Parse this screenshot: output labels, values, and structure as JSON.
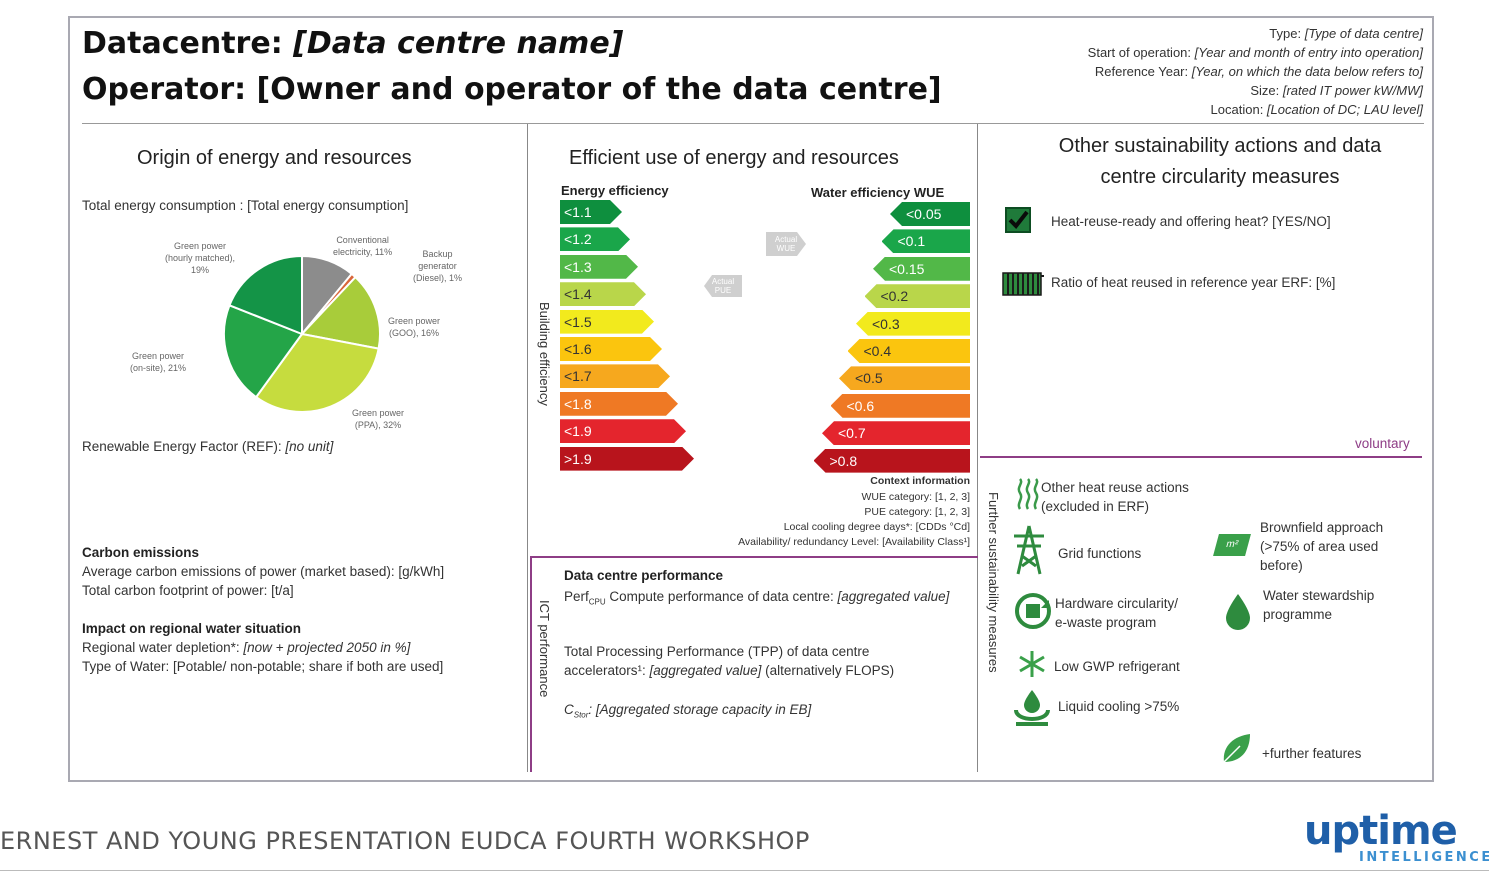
{
  "header": {
    "title_prefix": "Datacentre: ",
    "title_name": "[Data centre name]",
    "operator": "Operator: [Owner and operator of the data centre]",
    "meta": [
      {
        "label": "Type: ",
        "value": "[Type of data centre]"
      },
      {
        "label": "Start of operation: ",
        "value": "[Year and month of entry into operation]"
      },
      {
        "label": "Reference Year: ",
        "value": "[Year, on which the data below refers to]"
      },
      {
        "label": "Size: ",
        "value": "[rated IT power kW/MW]"
      },
      {
        "label": "Location: ",
        "value": "[Location of DC; LAU level]"
      }
    ]
  },
  "origin": {
    "heading": "Origin of energy and resources",
    "total": "Total energy consumption : [Total energy consumption]",
    "ref_label": "Renewable Energy Factor (REF): ",
    "ref_value": "[no unit]",
    "pie_labels": {
      "hourly": "Green power\n(hourly matched),\n19%",
      "conv": "Conventional\nelectricity, 11%",
      "backup": "Backup\ngenerator\n(Diesel), 1%",
      "goo": "Green power\n(GOO), 16%",
      "onsite": "Green power\n(on-site), 21%",
      "ppa": "Green power\n(PPA), 32%"
    },
    "carbon_heading": "Carbon emissions",
    "carbon_1": "Average carbon emissions of power (market based): [g/kWh]",
    "carbon_2": "Total carbon footprint of power: [t/a]",
    "water_heading": "Impact on regional water situation",
    "water_1a": "Regional water depletion*: ",
    "water_1b": "[now + projected 2050 in %]",
    "water_2": "Type of Water: [Potable/ non-potable; share if both are used]"
  },
  "chart_data": {
    "type": "pie",
    "title": "",
    "slices": [
      {
        "label": "Conventional electricity",
        "value": 11,
        "color": "#8c8c8c"
      },
      {
        "label": "Backup generator (Diesel)",
        "value": 1,
        "color": "#d9663a"
      },
      {
        "label": "Green power (GOO)",
        "value": 16,
        "color": "#a8cc3a"
      },
      {
        "label": "Green power (PPA)",
        "value": 32,
        "color": "#c6dc3e"
      },
      {
        "label": "Green power (on-site)",
        "value": 21,
        "color": "#24a548"
      },
      {
        "label": "Green power (hourly matched)",
        "value": 19,
        "color": "#149447"
      }
    ]
  },
  "efficiency": {
    "heading": "Efficient use of energy and resources",
    "energy_label": "Energy efficiency",
    "water_label": "Water efficiency WUE",
    "building_label": "Building efficiency",
    "actual_pue": "Actual\nPUE",
    "actual_wue": "Actual\nWUE",
    "pue_classes": [
      {
        "label": "<1.1",
        "color": "#0e8f3e"
      },
      {
        "label": "<1.2",
        "color": "#1aa64a"
      },
      {
        "label": "<1.3",
        "color": "#52b848"
      },
      {
        "label": "<1.4",
        "color": "#b9d64a"
      },
      {
        "label": "<1.5",
        "color": "#f2ea1d"
      },
      {
        "label": "<1.6",
        "color": "#fbc50e"
      },
      {
        "label": "<1.7",
        "color": "#f6a81e"
      },
      {
        "label": "<1.8",
        "color": "#ef7924"
      },
      {
        "label": "<1.9",
        "color": "#e4252d"
      },
      {
        "label": ">1.9",
        "color": "#b8141c"
      }
    ],
    "wue_classes": [
      {
        "label": "<0.05",
        "color": "#0e8f3e"
      },
      {
        "label": "<0.1",
        "color": "#1aa64a"
      },
      {
        "label": "<0.15",
        "color": "#52b848"
      },
      {
        "label": "<0.2",
        "color": "#b9d64a"
      },
      {
        "label": "<0.3",
        "color": "#f2ea1d"
      },
      {
        "label": "<0.4",
        "color": "#fbc50e"
      },
      {
        "label": "<0.5",
        "color": "#f6a81e"
      },
      {
        "label": "<0.6",
        "color": "#ef7924"
      },
      {
        "label": "<0.7",
        "color": "#e4252d"
      },
      {
        "label": ">0.8",
        "color": "#b8141c"
      }
    ],
    "context_heading": "Context information",
    "context": [
      "WUE category: [1, 2, 3]",
      "PUE category: [1, 2, 3]",
      "Local cooling degree days*: [CDDs °Cd]",
      "Availability/ redundancy Level: [Availability Class¹]"
    ]
  },
  "performance": {
    "vertical_label": "ICT performance",
    "heading": "Data centre performance",
    "perf_prefix": "Perf",
    "perf_sub": "CPU",
    "perf_text": " Compute performance of data centre: ",
    "perf_value": "[aggregated value]",
    "tpp_1": "Total Processing Performance (TPP) of data centre",
    "tpp_2a": "accelerators¹: ",
    "tpp_2b": "[aggregated value]",
    "tpp_2c": " (alternatively FLOPS)",
    "cstor_c": "C",
    "cstor_sub": "Stor",
    "cstor_text": ": [Aggregated storage capacity in EB]"
  },
  "sustain": {
    "heading_1": "Other sustainability actions and data",
    "heading_2": "centre circularity measures",
    "heat_ready": "Heat-reuse-ready and offering heat? [YES/NO]",
    "heat_ratio": "Ratio of heat reused in reference year ERF: [%]",
    "voluntary": "voluntary",
    "further_label": "Further sustainability measures",
    "other_heat": "Other heat reuse actions\n(excluded in ERF)",
    "grid": "Grid functions",
    "hardware": "Hardware circularity/\ne-waste program",
    "gwp": "Low GWP refrigerant",
    "liquid": "Liquid cooling >75%",
    "brownfield": "Brownfield approach\n(>75% of area used\nbefore)",
    "brownfield_icon": "m²",
    "water": "Water stewardship\nprogramme",
    "further": "+further features"
  },
  "footer": {
    "caption": "ERNEST AND YOUNG PRESENTATION EUDCA FOURTH WORKSHOP",
    "logo_main": "uptime",
    "logo_sub": "INTELLIGENCE"
  },
  "colors": {
    "purple": "#8e3d86",
    "logo_blue": "#1f5fa8",
    "logo_sub": "#3b8fd0"
  }
}
